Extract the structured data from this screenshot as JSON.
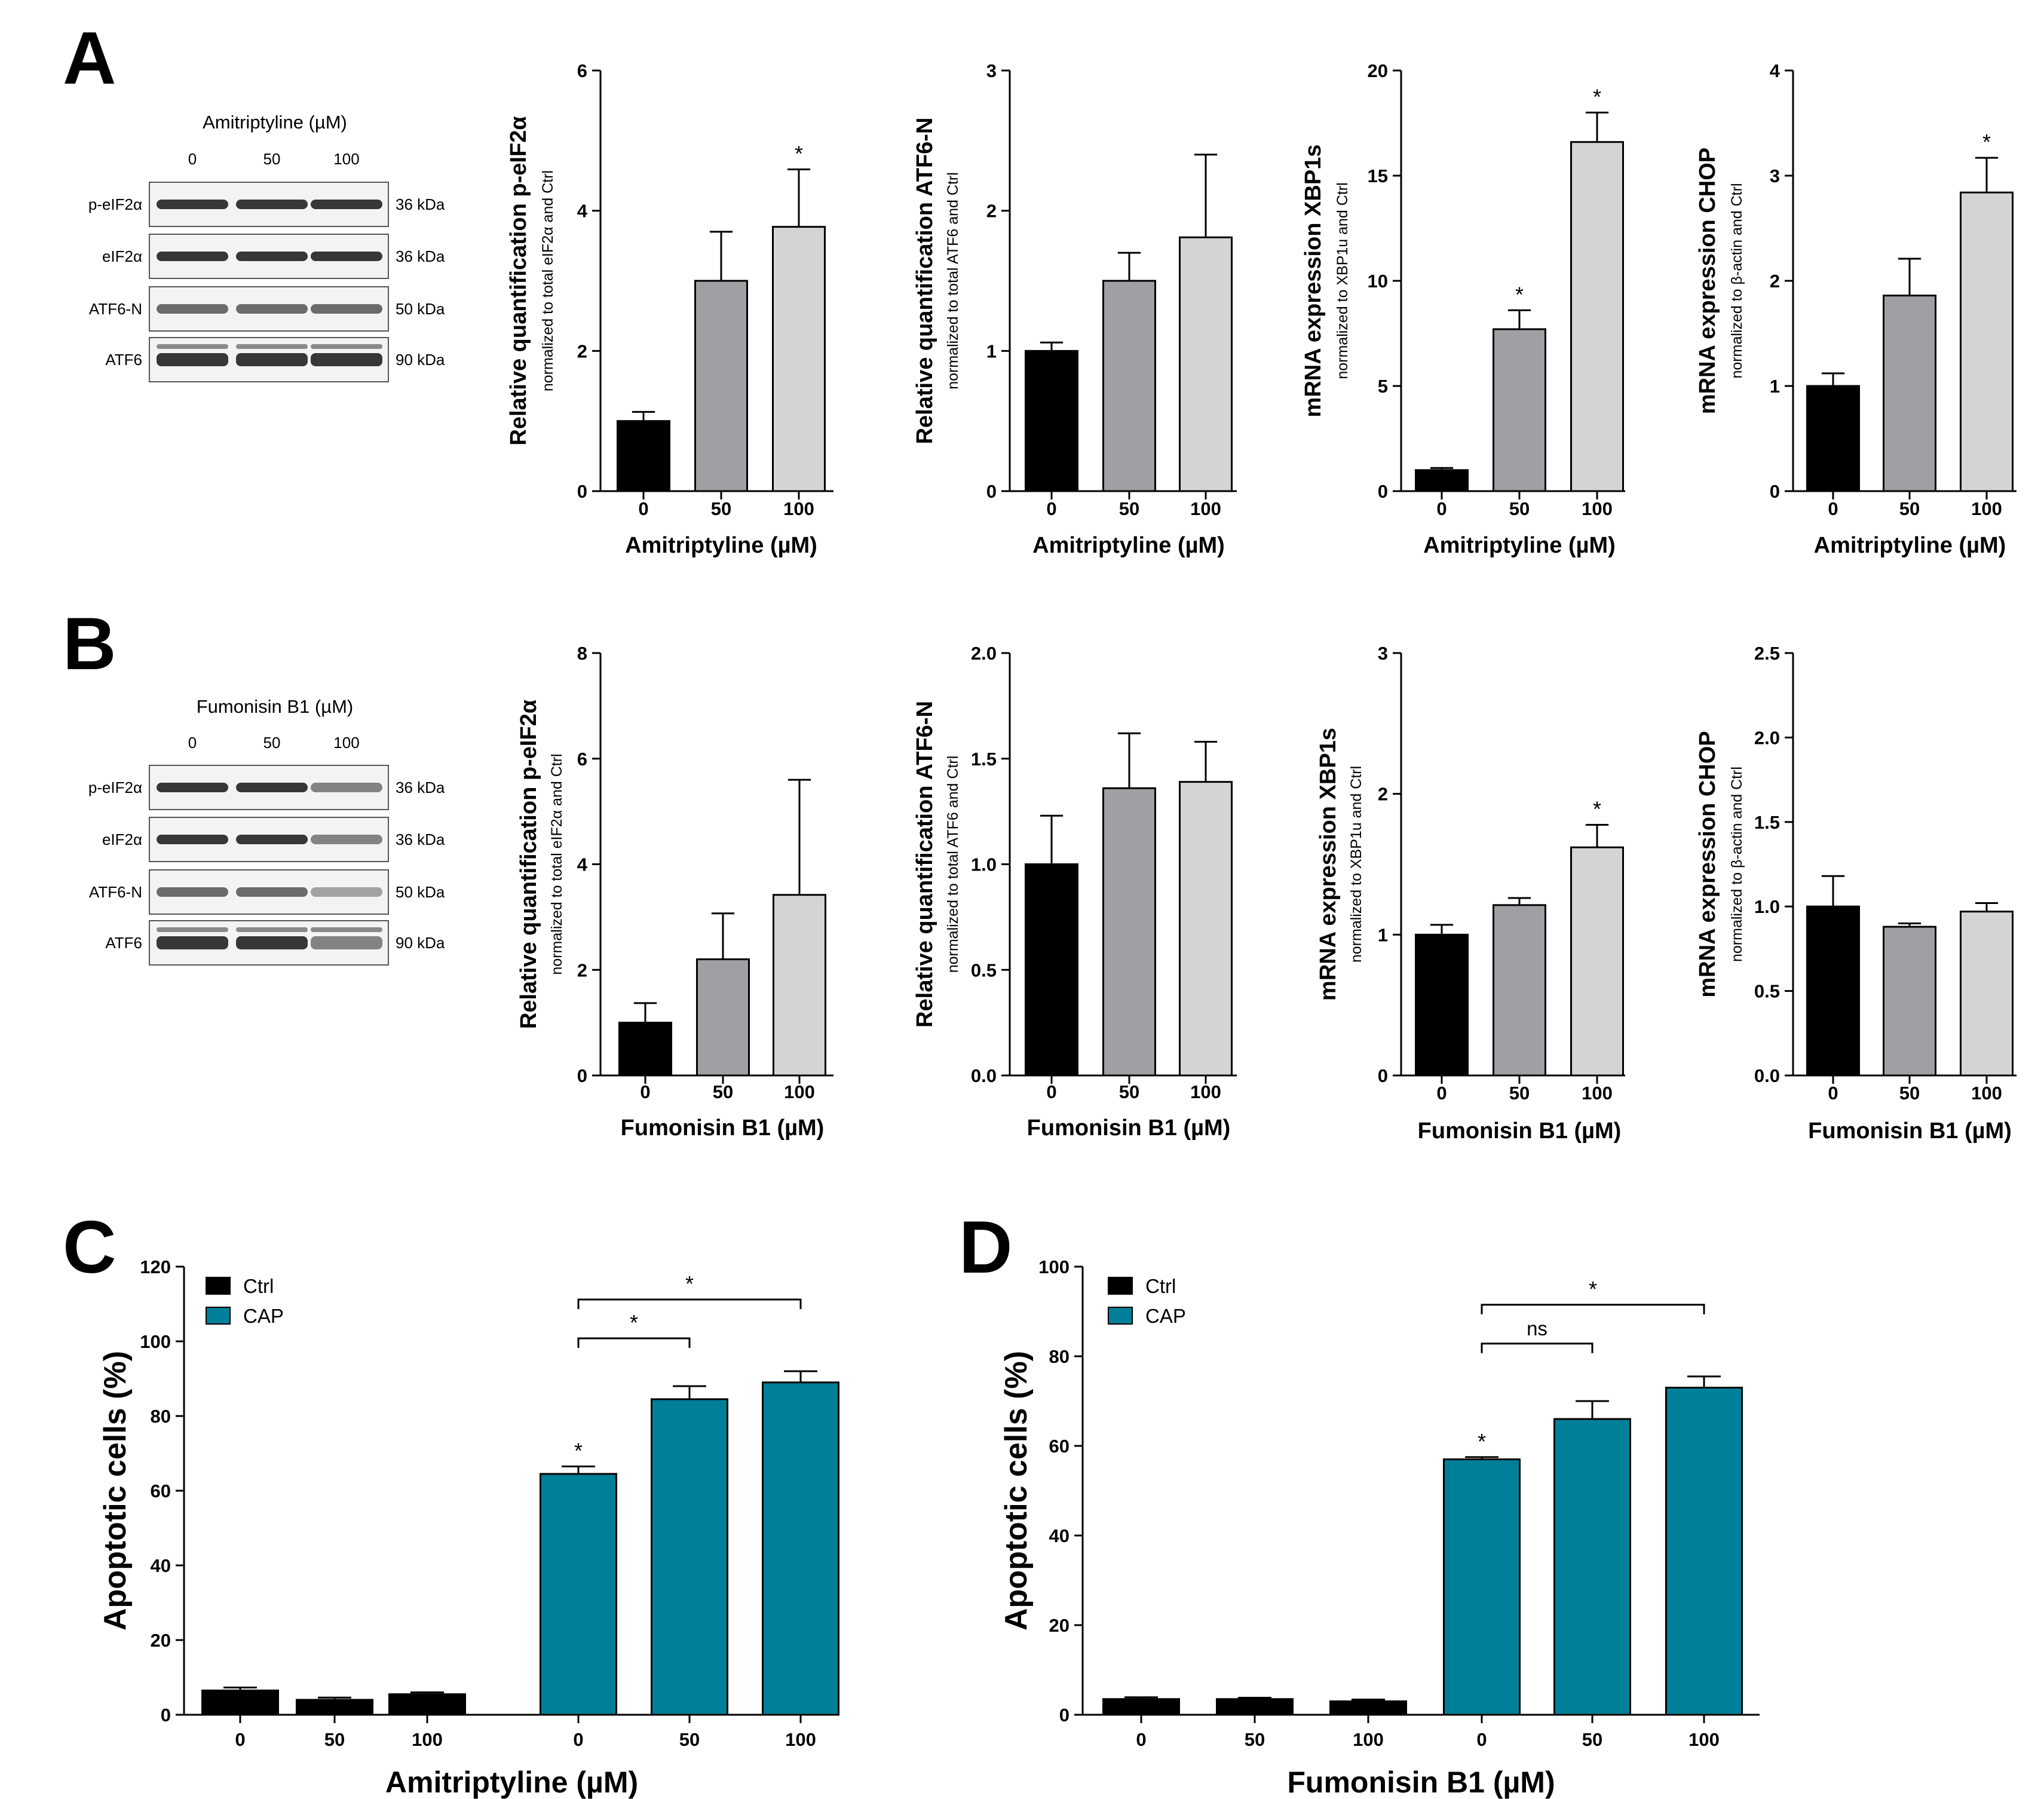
{
  "colors": {
    "black": "#000000",
    "dark_gray": "#9fa0a3",
    "light_gray": "#d4d4d4",
    "teal": "#007f98"
  },
  "panels": {
    "A": "A",
    "B": "B",
    "C": "C",
    "D": "D"
  },
  "blots": [
    {
      "title": "Amitriptyline (µM)",
      "lanes": [
        "0",
        "50",
        "100"
      ],
      "rows": [
        {
          "label": "p-eIF2α",
          "size": "36 kDa"
        },
        {
          "label": "eIF2α",
          "size": "36 kDa"
        },
        {
          "label": "ATF6-N",
          "size": "50 kDa"
        },
        {
          "label": "ATF6",
          "size": "90 kDa"
        }
      ]
    },
    {
      "title": "Fumonisin B1 (µM)",
      "lanes": [
        "0",
        "50",
        "100"
      ],
      "rows": [
        {
          "label": "p-eIF2α",
          "size": "36 kDa"
        },
        {
          "label": "eIF2α",
          "size": "36 kDa"
        },
        {
          "label": "ATF6-N",
          "size": "50 kDa"
        },
        {
          "label": "ATF6",
          "size": "90 kDa"
        }
      ]
    }
  ],
  "chart_data": [
    {
      "panel": "A",
      "type": "bar",
      "categories": [
        "0",
        "50",
        "100"
      ],
      "values": [
        1.0,
        3.0,
        3.77
      ],
      "errors": [
        0.13,
        0.7,
        0.82
      ],
      "ylim": [
        0,
        6
      ],
      "yticks": [
        "0",
        "2",
        "4",
        "6"
      ],
      "ylabel": "Relative quantification p-eIF2α",
      "ysublabel": "normalized to total eIF2α and Ctrl",
      "xlabel": "Amitriptyline (µM)",
      "stars": [
        null,
        null,
        "*"
      ]
    },
    {
      "panel": "A",
      "type": "bar",
      "categories": [
        "0",
        "50",
        "100"
      ],
      "values": [
        1.0,
        1.5,
        1.81
      ],
      "errors": [
        0.06,
        0.2,
        0.59
      ],
      "ylim": [
        0,
        3
      ],
      "yticks": [
        "0",
        "1",
        "2",
        "3"
      ],
      "ylabel": "Relative quantification ATF6-N",
      "ysublabel": "normalized to total ATF6 and Ctrl",
      "xlabel": "Amitriptyline (µM)",
      "stars": [
        null,
        null,
        null
      ]
    },
    {
      "panel": "A",
      "type": "bar",
      "categories": [
        "0",
        "50",
        "100"
      ],
      "values": [
        1.0,
        7.7,
        16.6
      ],
      "errors": [
        0.1,
        0.9,
        1.4
      ],
      "ylim": [
        0,
        20
      ],
      "yticks": [
        "0",
        "5",
        "10",
        "15",
        "20"
      ],
      "ylabel": "mRNA expression XBP1s",
      "ysublabel": "normalized to XBP1u and Ctrl",
      "xlabel": "Amitriptyline (µM)",
      "stars": [
        null,
        "*",
        "*"
      ]
    },
    {
      "panel": "A",
      "type": "bar",
      "categories": [
        "0",
        "50",
        "100"
      ],
      "values": [
        1.0,
        1.86,
        2.84
      ],
      "errors": [
        0.12,
        0.35,
        0.33
      ],
      "ylim": [
        0,
        4
      ],
      "yticks": [
        "0",
        "1",
        "2",
        "3",
        "4"
      ],
      "ylabel": "mRNA expression CHOP",
      "ysublabel": "normalized to β-actin and Ctrl",
      "xlabel": "Amitriptyline (µM)",
      "stars": [
        null,
        null,
        "*"
      ]
    },
    {
      "panel": "B",
      "type": "bar",
      "categories": [
        "0",
        "50",
        "100"
      ],
      "values": [
        1.0,
        2.2,
        3.42
      ],
      "errors": [
        0.37,
        0.87,
        2.18
      ],
      "ylim": [
        0,
        8
      ],
      "yticks": [
        "0",
        "2",
        "4",
        "6",
        "8"
      ],
      "ylabel": "Relative quantification p-eIF2α",
      "ysublabel": "normalized to total eIF2α and Ctrl",
      "xlabel": "Fumonisin B1 (µM)",
      "stars": [
        null,
        null,
        null
      ]
    },
    {
      "panel": "B",
      "type": "bar",
      "categories": [
        "0",
        "50",
        "100"
      ],
      "values": [
        1.0,
        1.36,
        1.39
      ],
      "errors": [
        0.23,
        0.26,
        0.19
      ],
      "ylim": [
        0,
        2
      ],
      "yticks": [
        "0.0",
        "0.5",
        "1.0",
        "1.5",
        "2.0"
      ],
      "ylabel": "Relative quantification ATF6-N",
      "ysublabel": "normalized to total ATF6 and Ctrl",
      "xlabel": "Fumonisin B1 (µM)",
      "stars": [
        null,
        null,
        null
      ]
    },
    {
      "panel": "B",
      "type": "bar",
      "categories": [
        "0",
        "50",
        "100"
      ],
      "values": [
        1.0,
        1.21,
        1.62
      ],
      "errors": [
        0.07,
        0.05,
        0.16
      ],
      "ylim": [
        0,
        3
      ],
      "yticks": [
        "0",
        "1",
        "2",
        "3"
      ],
      "ylabel": "mRNA expression XBP1s",
      "ysublabel": "normalized to XBP1u and Ctrl",
      "xlabel": "Fumonisin B1 (µM)",
      "stars": [
        null,
        null,
        "*"
      ]
    },
    {
      "panel": "B",
      "type": "bar",
      "categories": [
        "0",
        "50",
        "100"
      ],
      "values": [
        1.0,
        0.88,
        0.97
      ],
      "errors": [
        0.18,
        0.02,
        0.05
      ],
      "ylim": [
        0,
        2.5
      ],
      "yticks": [
        "0.0",
        "0.5",
        "1.0",
        "1.5",
        "2.0",
        "2.5"
      ],
      "ylabel": "mRNA expression CHOP",
      "ysublabel": "normalized to β-actin and Ctrl",
      "xlabel": "Fumonisin B1 (µM)",
      "stars": [
        null,
        null,
        null
      ]
    },
    {
      "panel": "C",
      "type": "bar",
      "categories": [
        "0",
        "50",
        "100",
        "0",
        "50",
        "100"
      ],
      "groups": [
        "Ctrl",
        "Ctrl",
        "Ctrl",
        "CAP",
        "CAP",
        "CAP"
      ],
      "values": [
        6.5,
        4.0,
        5.5,
        64.5,
        84.5,
        89.0
      ],
      "errors": [
        0.8,
        0.6,
        0.5,
        2.0,
        3.5,
        3.0
      ],
      "ylim": [
        0,
        120
      ],
      "yticks": [
        "0",
        "20",
        "40",
        "60",
        "80",
        "100",
        "120"
      ],
      "ylabel": "Apoptotic cells (%)",
      "xlabel": "Amitriptyline (µM)",
      "legend": [
        "Ctrl",
        "CAP"
      ],
      "stars": [
        null,
        null,
        null,
        "*",
        null,
        null
      ],
      "brackets": [
        {
          "from": 3,
          "to": 4,
          "label": "*"
        },
        {
          "from": 3,
          "to": 5,
          "label": "*"
        }
      ]
    },
    {
      "panel": "D",
      "type": "bar",
      "categories": [
        "0",
        "50",
        "100",
        "0",
        "50",
        "100"
      ],
      "groups": [
        "Ctrl",
        "Ctrl",
        "Ctrl",
        "CAP",
        "CAP",
        "CAP"
      ],
      "values": [
        3.5,
        3.5,
        3.0,
        57.0,
        66.0,
        73.0
      ],
      "errors": [
        0.4,
        0.3,
        0.4,
        0.5,
        4.0,
        2.5
      ],
      "ylim": [
        0,
        100
      ],
      "yticks": [
        "0",
        "20",
        "40",
        "60",
        "80",
        "100"
      ],
      "ylabel": "Apoptotic cells (%)",
      "xlabel": "Fumonisin B1 (µM)",
      "legend": [
        "Ctrl",
        "CAP"
      ],
      "stars": [
        null,
        null,
        null,
        "*",
        null,
        null
      ],
      "brackets": [
        {
          "from": 3,
          "to": 4,
          "label": "ns"
        },
        {
          "from": 3,
          "to": 5,
          "label": "*"
        }
      ]
    }
  ]
}
